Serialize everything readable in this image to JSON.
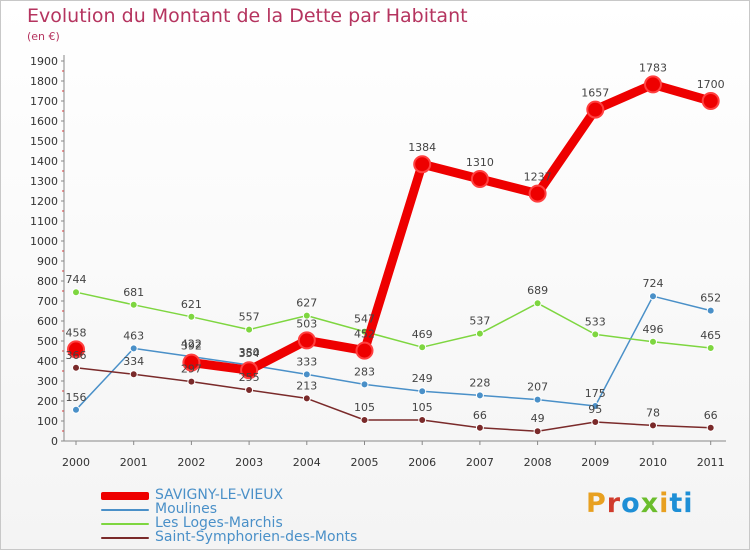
{
  "title": "Evolution du Montant de la Dette par Habitant",
  "subtitle": "(en €)",
  "brand": [
    "P",
    "r",
    "o",
    "x",
    "i",
    "ti"
  ],
  "chart_data": {
    "type": "line",
    "x": [
      "2000",
      "2001",
      "2002",
      "2003",
      "2004",
      "2005",
      "2006",
      "2007",
      "2008",
      "2009",
      "2010",
      "2011"
    ],
    "ylim": [
      0,
      1900
    ],
    "yticks": [
      0,
      100,
      200,
      300,
      400,
      500,
      600,
      700,
      800,
      900,
      1000,
      1100,
      1200,
      1300,
      1400,
      1500,
      1600,
      1700,
      1800,
      1900
    ],
    "grid": false,
    "legend_position": "bottom-left",
    "series": [
      {
        "name": "SAVIGNY-LE-VIEUX",
        "color": "#ee0000",
        "values": [
          458,
          null,
          392,
          354,
          503,
          452,
          1384,
          1310,
          1237,
          1657,
          1783,
          1700
        ],
        "labels": [
          "458",
          "",
          "392",
          "354",
          "503",
          "452",
          "1384",
          "1310",
          "1237",
          "1657",
          "1783",
          "1700"
        ]
      },
      {
        "name": "Moulines",
        "color": "#4a90c8",
        "values": [
          156,
          463,
          422,
          380,
          333,
          283,
          249,
          228,
          207,
          175,
          724,
          652
        ],
        "labels": [
          "156",
          "463",
          "422",
          "380",
          "333",
          "283",
          "249",
          "228",
          "207",
          "175",
          "724",
          "652"
        ]
      },
      {
        "name": "Les Loges-Marchis",
        "color": "#7ed640",
        "values": [
          744,
          681,
          621,
          557,
          627,
          547,
          469,
          537,
          689,
          533,
          496,
          465
        ],
        "labels": [
          "744",
          "681",
          "621",
          "557",
          "627",
          "547",
          "469",
          "537",
          "689",
          "533",
          "496",
          "465"
        ]
      },
      {
        "name": "Saint-Symphorien-des-Monts",
        "color": "#7a2a2a",
        "values": [
          366,
          334,
          297,
          255,
          213,
          105,
          105,
          66,
          49,
          95,
          78,
          66
        ],
        "labels": [
          "366",
          "334",
          "297",
          "255",
          "213",
          "105",
          "105",
          "66",
          "49",
          "95",
          "78",
          "66"
        ]
      }
    ]
  }
}
